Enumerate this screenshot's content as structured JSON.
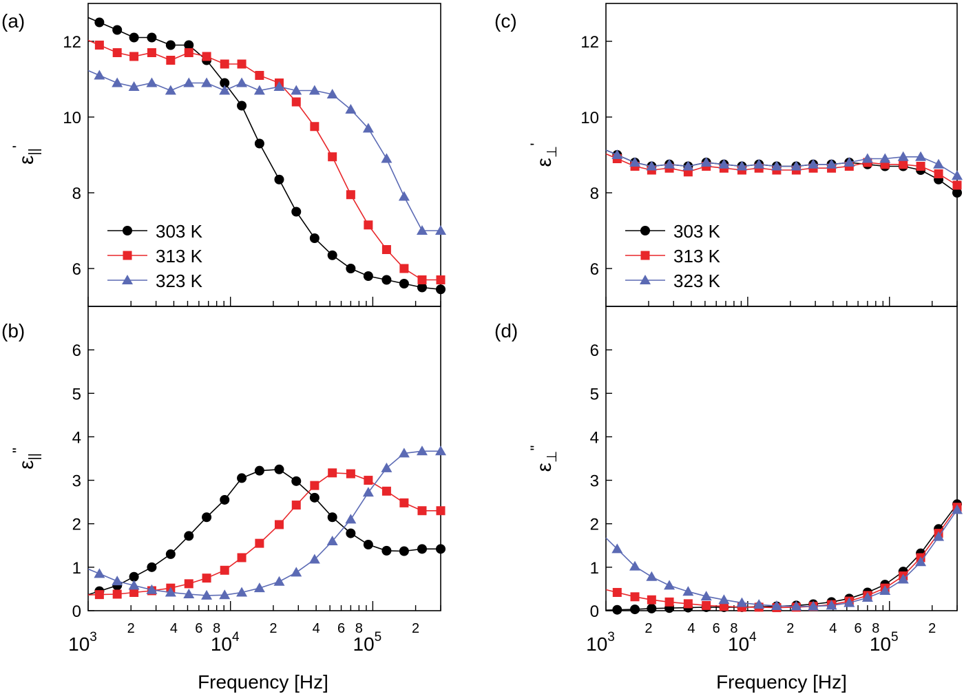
{
  "figure": {
    "xlabel": "Frequency [Hz]",
    "series_names": [
      "303 K",
      "313 K",
      "323 K"
    ],
    "colors": [
      "#000000",
      "#e8262a",
      "#5b6ab4"
    ],
    "markers": [
      "circle",
      "square",
      "triangle"
    ]
  },
  "chart_data": [
    {
      "type": "line",
      "panel_label": "(a)",
      "ylabel_symbol": "ε",
      "ylabel_sub": "||",
      "ylabel_sup": "'",
      "xscale": "log",
      "xlim": [
        1000,
        300000
      ],
      "ylim": [
        5,
        13
      ],
      "yticks": [
        6,
        8,
        10,
        12
      ],
      "legend": "lower-left",
      "series": [
        {
          "name": "303 K",
          "x": [
            1200,
            1600,
            2100,
            2800,
            3800,
            5100,
            6800,
            9100,
            12000,
            16000,
            22000,
            29000,
            39000,
            52000,
            70000,
            93000,
            125000,
            166000,
            222000,
            300000
          ],
          "values": [
            12.5,
            12.3,
            12.1,
            12.1,
            11.9,
            11.9,
            11.5,
            10.9,
            10.3,
            9.3,
            8.35,
            7.5,
            6.8,
            6.35,
            6.0,
            5.8,
            5.7,
            5.6,
            5.5,
            5.45
          ]
        },
        {
          "name": "313 K",
          "x": [
            1200,
            1600,
            2100,
            2800,
            3800,
            5100,
            6800,
            9100,
            12000,
            16000,
            22000,
            29000,
            39000,
            52000,
            70000,
            93000,
            125000,
            166000,
            222000,
            300000
          ],
          "values": [
            11.9,
            11.7,
            11.6,
            11.7,
            11.5,
            11.7,
            11.6,
            11.4,
            11.4,
            11.1,
            10.9,
            10.4,
            9.75,
            8.95,
            7.95,
            7.15,
            6.5,
            6.0,
            5.7,
            5.7
          ]
        },
        {
          "name": "323 K",
          "x": [
            1200,
            1600,
            2100,
            2800,
            3800,
            5100,
            6800,
            9100,
            12000,
            16000,
            22000,
            29000,
            39000,
            52000,
            70000,
            93000,
            125000,
            166000,
            222000,
            300000
          ],
          "values": [
            11.1,
            10.9,
            10.8,
            10.9,
            10.7,
            10.9,
            10.9,
            10.7,
            10.9,
            10.7,
            10.8,
            10.7,
            10.7,
            10.6,
            10.2,
            9.7,
            8.9,
            7.9,
            7.0,
            7.0
          ]
        }
      ]
    },
    {
      "type": "line",
      "panel_label": "(b)",
      "ylabel_symbol": "ε",
      "ylabel_sub": "||",
      "ylabel_sup": "\"",
      "xscale": "log",
      "xlim": [
        1000,
        300000
      ],
      "ylim": [
        0,
        7
      ],
      "yticks": [
        0,
        1,
        2,
        3,
        4,
        5,
        6
      ],
      "xtick_labels": [
        "10",
        "10",
        "10"
      ],
      "xtick_exponents": [
        "3",
        "4",
        "5"
      ],
      "xminor_labels": [
        "2",
        "4",
        "6",
        "8"
      ],
      "series": [
        {
          "name": "303 K",
          "x": [
            1200,
            1600,
            2100,
            2800,
            3800,
            5100,
            6800,
            9100,
            12000,
            16000,
            22000,
            29000,
            39000,
            52000,
            70000,
            93000,
            125000,
            166000,
            222000,
            300000
          ],
          "values": [
            0.45,
            0.58,
            0.78,
            1.0,
            1.3,
            1.72,
            2.15,
            2.55,
            3.05,
            3.22,
            3.25,
            2.98,
            2.6,
            2.15,
            1.78,
            1.52,
            1.38,
            1.37,
            1.42,
            1.42
          ]
        },
        {
          "name": "313 K",
          "x": [
            1200,
            1600,
            2100,
            2800,
            3800,
            5100,
            6800,
            9100,
            12000,
            16000,
            22000,
            29000,
            39000,
            52000,
            70000,
            93000,
            125000,
            166000,
            222000,
            300000
          ],
          "values": [
            0.37,
            0.38,
            0.42,
            0.46,
            0.52,
            0.62,
            0.75,
            0.93,
            1.22,
            1.55,
            1.98,
            2.43,
            2.88,
            3.17,
            3.15,
            3.0,
            2.75,
            2.48,
            2.3,
            2.3
          ]
        },
        {
          "name": "323 K",
          "x": [
            1200,
            1600,
            2100,
            2800,
            3800,
            5100,
            6800,
            9100,
            12000,
            16000,
            22000,
            29000,
            39000,
            52000,
            70000,
            93000,
            125000,
            166000,
            222000,
            300000
          ],
          "values": [
            0.85,
            0.68,
            0.58,
            0.48,
            0.42,
            0.38,
            0.35,
            0.36,
            0.42,
            0.52,
            0.67,
            0.88,
            1.18,
            1.6,
            2.1,
            2.72,
            3.28,
            3.62,
            3.67,
            3.67
          ]
        }
      ]
    },
    {
      "type": "line",
      "panel_label": "(c)",
      "ylabel_symbol": "ε",
      "ylabel_sub": "⊥",
      "ylabel_sup": "'",
      "xscale": "log",
      "xlim": [
        1000,
        300000
      ],
      "ylim": [
        5,
        13
      ],
      "yticks": [
        6,
        8,
        10,
        12
      ],
      "legend": "lower-left",
      "series": [
        {
          "name": "303 K",
          "x": [
            1200,
            1600,
            2100,
            2800,
            3800,
            5100,
            6800,
            9100,
            12000,
            16000,
            22000,
            29000,
            39000,
            52000,
            70000,
            93000,
            125000,
            166000,
            222000,
            300000
          ],
          "values": [
            9.0,
            8.8,
            8.7,
            8.75,
            8.7,
            8.8,
            8.75,
            8.7,
            8.75,
            8.7,
            8.7,
            8.75,
            8.75,
            8.8,
            8.75,
            8.7,
            8.7,
            8.6,
            8.35,
            8.0
          ]
        },
        {
          "name": "313 K",
          "x": [
            1200,
            1600,
            2100,
            2800,
            3800,
            5100,
            6800,
            9100,
            12000,
            16000,
            22000,
            29000,
            39000,
            52000,
            70000,
            93000,
            125000,
            166000,
            222000,
            300000
          ],
          "values": [
            8.9,
            8.7,
            8.6,
            8.65,
            8.55,
            8.7,
            8.65,
            8.6,
            8.65,
            8.6,
            8.6,
            8.65,
            8.65,
            8.7,
            8.8,
            8.75,
            8.75,
            8.7,
            8.5,
            8.2
          ]
        },
        {
          "name": "323 K",
          "x": [
            1200,
            1600,
            2100,
            2800,
            3800,
            5100,
            6800,
            9100,
            12000,
            16000,
            22000,
            29000,
            39000,
            52000,
            70000,
            93000,
            125000,
            166000,
            222000,
            300000
          ],
          "values": [
            9.0,
            8.8,
            8.7,
            8.75,
            8.7,
            8.8,
            8.75,
            8.7,
            8.75,
            8.7,
            8.7,
            8.75,
            8.75,
            8.8,
            8.9,
            8.9,
            8.95,
            8.95,
            8.75,
            8.45
          ]
        }
      ]
    },
    {
      "type": "line",
      "panel_label": "(d)",
      "ylabel_symbol": "ε",
      "ylabel_sub": "⊥",
      "ylabel_sup": "\"",
      "xscale": "log",
      "xlim": [
        1000,
        300000
      ],
      "ylim": [
        0,
        7
      ],
      "yticks": [
        0,
        1,
        2,
        3,
        4,
        5,
        6
      ],
      "xtick_labels": [
        "10",
        "10",
        "10"
      ],
      "xtick_exponents": [
        "3",
        "4",
        "5"
      ],
      "xminor_labels": [
        "2",
        "4",
        "6",
        "8"
      ],
      "series": [
        {
          "name": "303 K",
          "x": [
            1200,
            1600,
            2100,
            2800,
            3800,
            5100,
            6800,
            9100,
            12000,
            16000,
            22000,
            29000,
            39000,
            52000,
            70000,
            93000,
            125000,
            166000,
            222000,
            300000
          ],
          "values": [
            0.02,
            0.03,
            0.05,
            0.06,
            0.07,
            0.08,
            0.08,
            0.08,
            0.09,
            0.1,
            0.12,
            0.15,
            0.2,
            0.28,
            0.42,
            0.6,
            0.9,
            1.32,
            1.88,
            2.45
          ]
        },
        {
          "name": "313 K",
          "x": [
            1200,
            1600,
            2100,
            2800,
            3800,
            5100,
            6800,
            9100,
            12000,
            16000,
            22000,
            29000,
            39000,
            52000,
            70000,
            93000,
            125000,
            166000,
            222000,
            300000
          ],
          "values": [
            0.42,
            0.32,
            0.25,
            0.2,
            0.16,
            0.12,
            0.1,
            0.08,
            0.08,
            0.07,
            0.08,
            0.1,
            0.14,
            0.22,
            0.35,
            0.52,
            0.8,
            1.22,
            1.78,
            2.38
          ]
        },
        {
          "name": "323 K",
          "x": [
            1200,
            1600,
            2100,
            2800,
            3800,
            5100,
            6800,
            9100,
            12000,
            16000,
            22000,
            29000,
            39000,
            52000,
            70000,
            93000,
            125000,
            166000,
            222000,
            300000
          ],
          "values": [
            1.42,
            1.02,
            0.78,
            0.58,
            0.44,
            0.33,
            0.25,
            0.18,
            0.14,
            0.11,
            0.1,
            0.1,
            0.12,
            0.18,
            0.3,
            0.46,
            0.72,
            1.12,
            1.7,
            2.32
          ]
        }
      ]
    }
  ]
}
